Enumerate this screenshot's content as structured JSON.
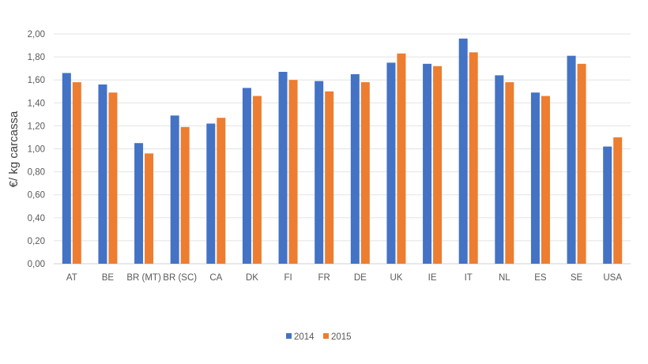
{
  "chart_data": {
    "type": "bar",
    "title": "",
    "xlabel": "",
    "ylabel": "€/ kg carcassa",
    "ylim": [
      0,
      2
    ],
    "ytick_step": 0.2,
    "ytick_labels": [
      "0,00",
      "0,20",
      "0,40",
      "0,60",
      "0,80",
      "1,00",
      "1,20",
      "1,40",
      "1,60",
      "1,80",
      "2,00"
    ],
    "grid": true,
    "legend": "bottom",
    "categories": [
      "AT",
      "BE",
      "BR (MT)",
      "BR (SC)",
      "CA",
      "DK",
      "FI",
      "FR",
      "DE",
      "UK",
      "IE",
      "IT",
      "NL",
      "ES",
      "SE",
      "USA"
    ],
    "series": [
      {
        "name": "2014",
        "color": "#4472C4",
        "values": [
          1.66,
          1.56,
          1.05,
          1.29,
          1.22,
          1.53,
          1.67,
          1.59,
          1.65,
          1.75,
          1.74,
          1.96,
          1.64,
          1.49,
          1.81,
          1.02
        ]
      },
      {
        "name": "2015",
        "color": "#ED7D31",
        "values": [
          1.58,
          1.49,
          0.96,
          1.19,
          1.27,
          1.46,
          1.6,
          1.5,
          1.58,
          1.83,
          1.72,
          1.84,
          1.58,
          1.46,
          1.74,
          1.1
        ]
      }
    ]
  }
}
